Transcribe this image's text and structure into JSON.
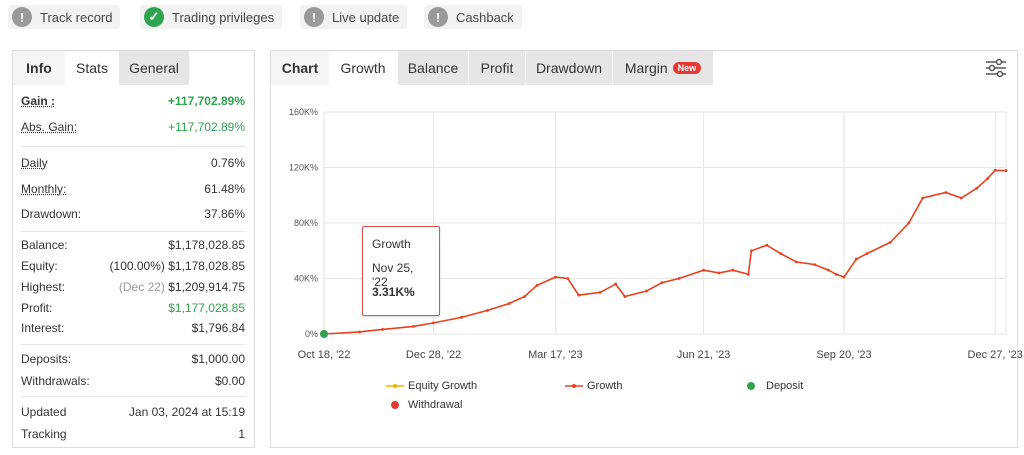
{
  "top_badges": [
    {
      "label": "Track record",
      "icon": "exclamation-icon",
      "status": "gray"
    },
    {
      "label": "Trading privileges",
      "icon": "checkmark-icon",
      "status": "green"
    },
    {
      "label": "Live update",
      "icon": "exclamation-icon",
      "status": "gray"
    },
    {
      "label": "Cashback",
      "icon": "exclamation-icon",
      "status": "gray"
    }
  ],
  "stats_panel": {
    "tabs": [
      "Info",
      "Stats",
      "General"
    ],
    "gain_label": "Gain :",
    "gain_value": "+117,702.89%",
    "abs_gain_label": "Abs. Gain:",
    "abs_gain_value": "+117,702.89%",
    "daily_label": "Daily",
    "daily_value": "0.76%",
    "monthly_label": "Monthly:",
    "monthly_value": "61.48%",
    "drawdown_label": "Drawdown:",
    "drawdown_value": "37.86%",
    "balance_label": "Balance:",
    "balance_value": "$1,178,028.85",
    "equity_label": "Equity:",
    "equity_pct": "(100.00%)",
    "equity_value": "$1,178,028.85",
    "highest_label": "Highest:",
    "highest_date": "(Dec 22)",
    "highest_value": "$1,209,914.75",
    "profit_label": "Profit:",
    "profit_value": "$1,177,028.85",
    "interest_label": "Interest:",
    "interest_value": "$1,796.84",
    "deposits_label": "Deposits:",
    "deposits_value": "$1,000.00",
    "withdrawals_label": "Withdrawals:",
    "withdrawals_value": "$0.00",
    "updated_label": "Updated",
    "updated_value": "Jan 03, 2024 at 15:19",
    "tracking_label": "Tracking",
    "tracking_value": "1"
  },
  "chart_panel": {
    "tabs": [
      "Chart",
      "Growth",
      "Balance",
      "Profit",
      "Drawdown",
      "Margin"
    ],
    "new_badge": "New",
    "settings_icon": "sliders-icon",
    "tooltip": {
      "title": "Growth",
      "date": "Nov 25, '22",
      "value": "3.31K%"
    },
    "legend": [
      "Equity Growth",
      "Growth",
      "Deposit",
      "Withdrawal"
    ]
  },
  "colors": {
    "growth_line": "#e8411f",
    "equity_line": "#f0b400",
    "positive_bar": "#9ed48a",
    "negative_bar": "#e85a4f",
    "deposit": "#2ea44f",
    "withdrawal": "#e53935"
  },
  "chart_data": {
    "type": "line",
    "x_ticks": [
      "Oct 18, '22",
      "Dec 28, '22",
      "Mar 17, '23",
      "Jun 21, '23",
      "Sep 20, '23",
      "Dec 27, '23"
    ],
    "y_ticks": [
      "0%",
      "40K%",
      "80K%",
      "120K%",
      "160K%"
    ],
    "ylim": [
      0,
      160000
    ],
    "grid": true,
    "legend_position": "bottom",
    "series": [
      {
        "name": "Growth",
        "x": [
          "2022-10-18",
          "2022-11-10",
          "2022-11-25",
          "2022-12-15",
          "2022-12-28",
          "2023-01-15",
          "2023-02-01",
          "2023-02-15",
          "2023-02-25",
          "2023-03-05",
          "2023-03-17",
          "2023-03-25",
          "2023-04-01",
          "2023-04-15",
          "2023-04-25",
          "2023-05-01",
          "2023-05-15",
          "2023-05-25",
          "2023-06-05",
          "2023-06-21",
          "2023-07-01",
          "2023-07-10",
          "2023-07-20",
          "2023-07-22",
          "2023-08-01",
          "2023-08-10",
          "2023-08-20",
          "2023-09-01",
          "2023-09-10",
          "2023-09-15",
          "2023-09-20",
          "2023-09-28",
          "2023-10-05",
          "2023-10-20",
          "2023-11-01",
          "2023-11-10",
          "2023-11-25",
          "2023-12-05",
          "2023-12-15",
          "2023-12-22",
          "2023-12-27",
          "2024-01-03"
        ],
        "values": [
          0,
          1500,
          3310,
          5500,
          8000,
          12000,
          17000,
          22000,
          27000,
          35000,
          41000,
          40000,
          28000,
          30000,
          36000,
          27000,
          31000,
          37000,
          40000,
          46000,
          44000,
          46000,
          43000,
          60000,
          64000,
          58000,
          52000,
          50000,
          46000,
          43000,
          41000,
          54000,
          58000,
          66000,
          80000,
          98000,
          102000,
          98000,
          105000,
          112000,
          118000,
          117702.89
        ]
      },
      {
        "name": "Equity Growth",
        "x": [
          "2022-10-18",
          "2024-01-03"
        ],
        "values": [
          0,
          117702.89
        ]
      }
    ],
    "deposits": [
      {
        "x": "2022-10-18",
        "value": 1000
      }
    ],
    "withdrawals": []
  }
}
